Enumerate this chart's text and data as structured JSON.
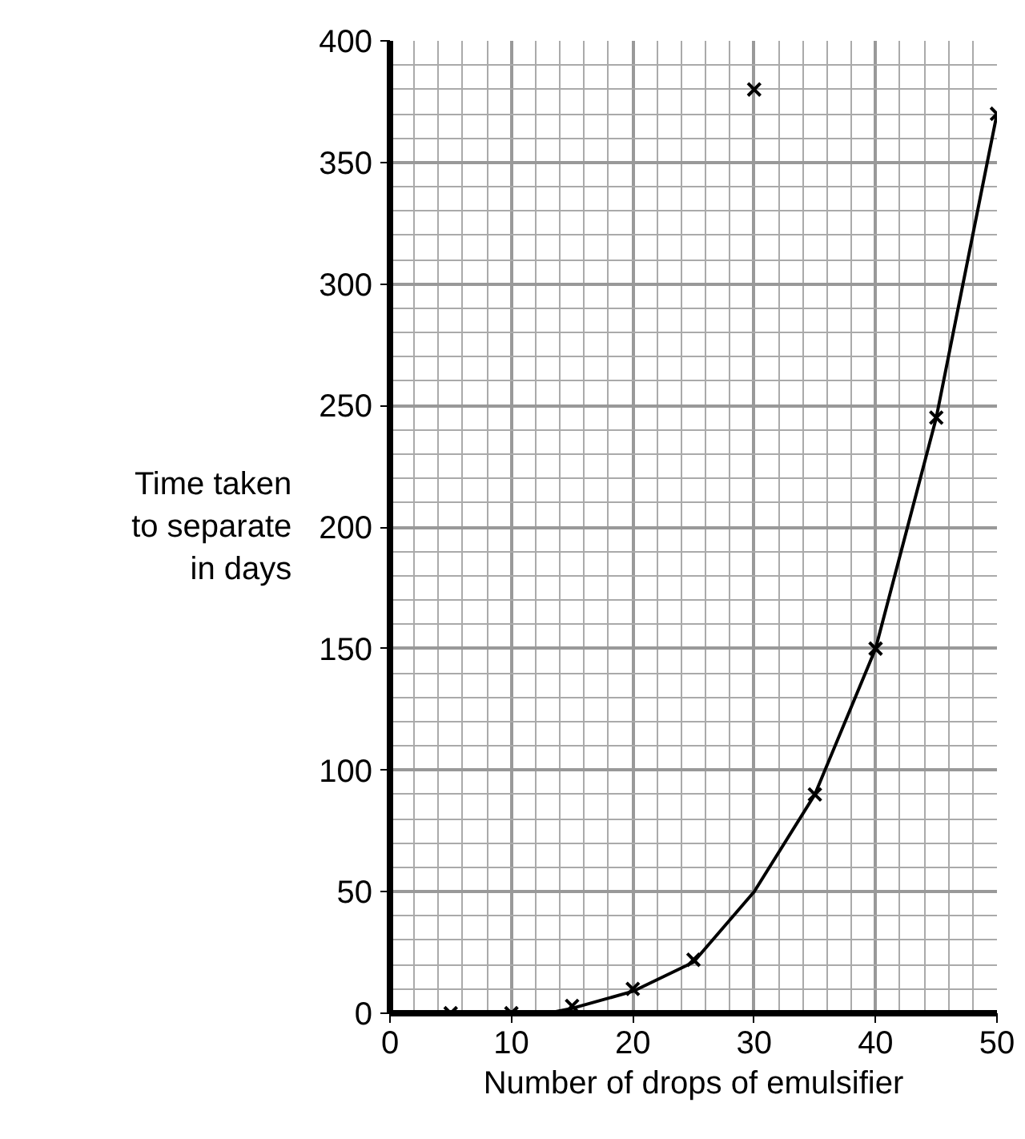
{
  "chart_data": {
    "type": "scatter",
    "xlabel": "Number of drops of emulsifier",
    "ylabel": "Time taken\nto separate\nin days",
    "xlim": [
      0,
      50
    ],
    "ylim": [
      0,
      400
    ],
    "xticks": [
      0,
      10,
      20,
      30,
      40,
      50
    ],
    "yticks": [
      0,
      50,
      100,
      150,
      200,
      250,
      300,
      350,
      400
    ],
    "grid": true,
    "series": [
      {
        "marker": "cross",
        "color": "#000000",
        "x": [
          5,
          10,
          15,
          20,
          25,
          30,
          35,
          40,
          45,
          50
        ],
        "values": [
          0,
          0,
          3,
          10,
          22,
          380,
          90,
          150,
          245,
          370
        ]
      },
      {
        "type": "line",
        "color": "#000000",
        "line_style": "solid",
        "x": [
          0,
          13,
          15,
          20,
          25,
          30,
          35,
          40,
          45,
          50
        ],
        "values": [
          0,
          0,
          2,
          9,
          21,
          50,
          90,
          150,
          245,
          370
        ]
      }
    ]
  }
}
